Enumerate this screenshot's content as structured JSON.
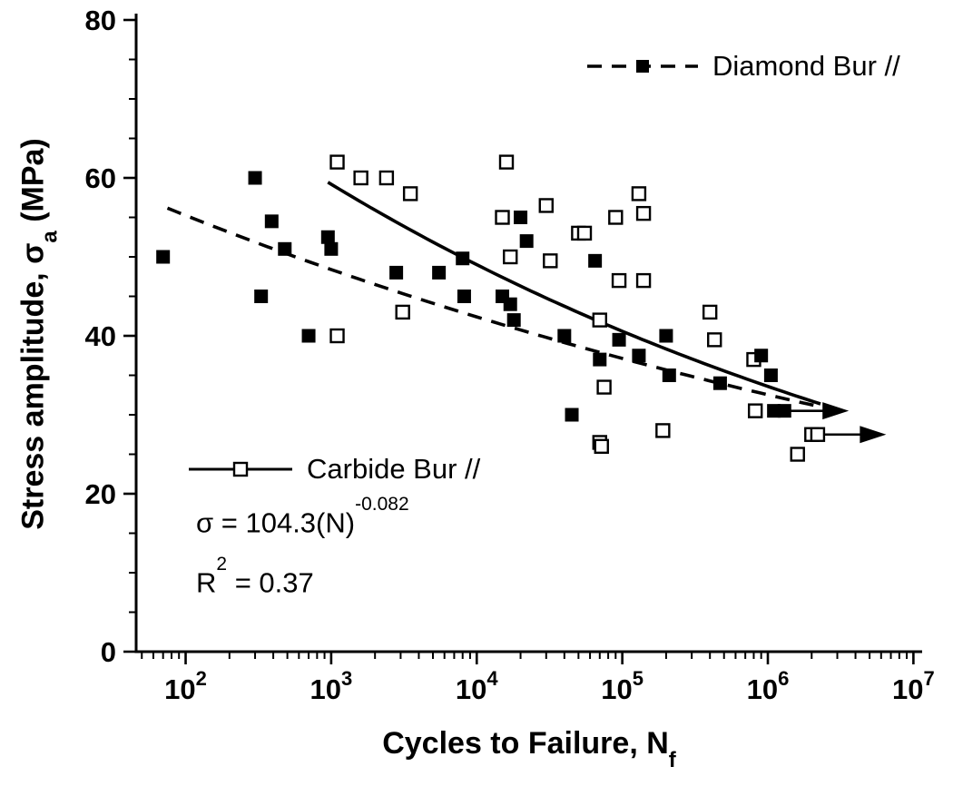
{
  "chart_data": {
    "type": "scatter",
    "title": "",
    "x_axis": {
      "label_main": "Cycles to Failure, N",
      "label_sub": "f",
      "scale": "log",
      "lim_log": [
        1.66,
        7.06
      ],
      "ticks": [
        {
          "value": 100,
          "base": "10",
          "exp": "2"
        },
        {
          "value": 1000,
          "base": "10",
          "exp": "3"
        },
        {
          "value": 10000,
          "base": "10",
          "exp": "4"
        },
        {
          "value": 100000,
          "base": "10",
          "exp": "5"
        },
        {
          "value": 1000000,
          "base": "10",
          "exp": "6"
        },
        {
          "value": 10000000,
          "base": "10",
          "exp": "7"
        }
      ]
    },
    "y_axis": {
      "label_pre": "Stress amplitude, ",
      "label_sigma": "σ",
      "label_sub": "a",
      "label_post": " (MPa)",
      "lim": [
        0,
        80
      ],
      "minor_step": 5,
      "ticks": [
        {
          "value": 0,
          "label": "0"
        },
        {
          "value": 20,
          "label": "20"
        },
        {
          "value": 40,
          "label": "40"
        },
        {
          "value": 60,
          "label": "60"
        },
        {
          "value": 80,
          "label": "80"
        }
      ]
    },
    "series": [
      {
        "name": "Diamond Bur //",
        "marker": "filled-square",
        "line": "dashed",
        "points": [
          [
            70,
            50
          ],
          [
            300,
            60
          ],
          [
            330,
            45
          ],
          [
            390,
            54.5
          ],
          [
            480,
            51
          ],
          [
            700,
            40
          ],
          [
            950,
            52.5
          ],
          [
            1000,
            51
          ],
          [
            2800,
            48
          ],
          [
            5500,
            48
          ],
          [
            8000,
            49.8
          ],
          [
            8200,
            45
          ],
          [
            15000,
            45
          ],
          [
            17000,
            44
          ],
          [
            18000,
            42
          ],
          [
            20000,
            55
          ],
          [
            22000,
            52
          ],
          [
            40000,
            40
          ],
          [
            45000,
            30
          ],
          [
            65000,
            49.5
          ],
          [
            70000,
            37
          ],
          [
            95000,
            39.5
          ],
          [
            130000,
            37.5
          ],
          [
            200000,
            40
          ],
          [
            210000,
            35
          ],
          [
            470000,
            34
          ],
          [
            900000,
            37.5
          ],
          [
            1050000,
            35
          ],
          [
            1100000,
            30.5
          ],
          [
            1300000,
            30.5
          ]
        ]
      },
      {
        "name": "Carbide Bur //",
        "marker": "open-square",
        "line": "solid",
        "points": [
          [
            1100,
            62
          ],
          [
            1100,
            40
          ],
          [
            1600,
            60
          ],
          [
            2400,
            60
          ],
          [
            3100,
            43
          ],
          [
            3500,
            58
          ],
          [
            15000,
            55
          ],
          [
            16000,
            62
          ],
          [
            17000,
            50
          ],
          [
            30000,
            56.5
          ],
          [
            32000,
            49.5
          ],
          [
            50000,
            53
          ],
          [
            55000,
            53
          ],
          [
            70000,
            42
          ],
          [
            75000,
            33.5
          ],
          [
            70000,
            26.5
          ],
          [
            72000,
            26
          ],
          [
            90000,
            55
          ],
          [
            95000,
            47
          ],
          [
            130000,
            58
          ],
          [
            140000,
            55.5
          ],
          [
            140000,
            47
          ],
          [
            190000,
            28
          ],
          [
            400000,
            43
          ],
          [
            430000,
            39.5
          ],
          [
            800000,
            37
          ],
          [
            820000,
            30.5
          ],
          [
            1600000,
            25
          ],
          [
            2000000,
            27.5
          ],
          [
            2200000,
            27.5
          ]
        ]
      }
    ],
    "fit_lines": [
      {
        "series": "Carbide Bur //",
        "style": "solid",
        "coefficient": 104.3,
        "exponent": -0.082,
        "x_range": [
          950,
          2300000
        ]
      },
      {
        "series": "Diamond Bur //",
        "style": "dashed",
        "coefficient": 72.0,
        "exponent": -0.0575,
        "x_range": [
          75,
          2900000
        ]
      }
    ],
    "runout_arrows": [
      {
        "y": 30.5,
        "x_from": 1050000,
        "x_to": 3600000,
        "series": "Diamond Bur //"
      },
      {
        "y": 27.5,
        "x_from": 1900000,
        "x_to": 6500000,
        "series": "Carbide Bur //"
      }
    ],
    "annotations": {
      "eq_sigma": "σ",
      "eq_body": " = 104.3(N)",
      "eq_exp": "-0.082",
      "r2_base": "R",
      "r2_exp": "2",
      "r2_body": " = 0.37"
    }
  }
}
